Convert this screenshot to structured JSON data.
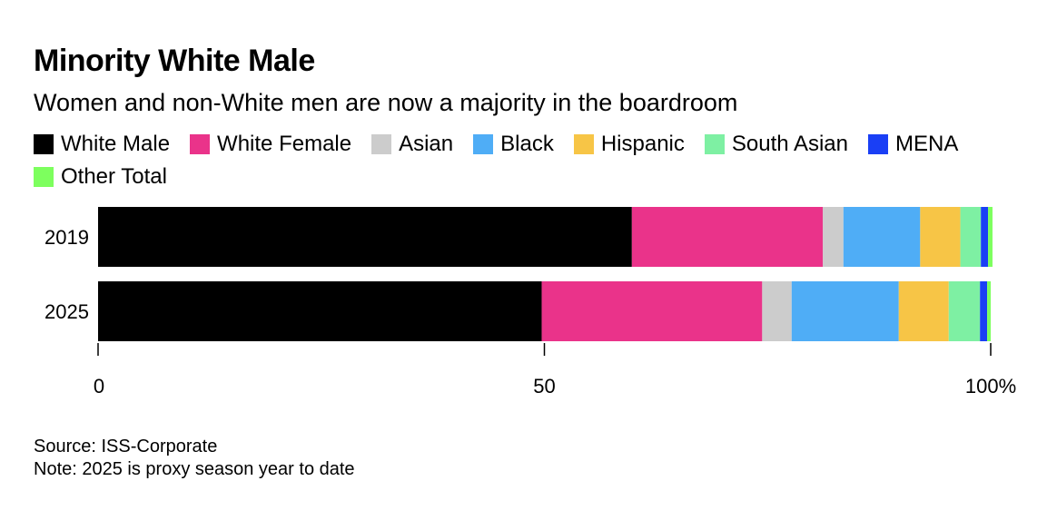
{
  "chart_data": {
    "type": "bar",
    "orientation": "horizontal",
    "stacked": true,
    "title": "Minority White Male",
    "subtitle": "Women and non-White men are now a majority in the boardroom",
    "categories": [
      "2019",
      "2025"
    ],
    "series": [
      {
        "name": "White Male",
        "color": "#000000",
        "values": [
          59.8,
          49.7
        ]
      },
      {
        "name": "White Female",
        "color": "#ea338a",
        "values": [
          21.4,
          24.7
        ]
      },
      {
        "name": "Asian",
        "color": "#cccccc",
        "values": [
          2.3,
          3.3
        ]
      },
      {
        "name": "Black",
        "color": "#4fadf6",
        "values": [
          8.6,
          12.0
        ]
      },
      {
        "name": "Hispanic",
        "color": "#f7c546",
        "values": [
          4.5,
          5.6
        ]
      },
      {
        "name": "South Asian",
        "color": "#7ef0a3",
        "values": [
          2.3,
          3.5
        ]
      },
      {
        "name": "MENA",
        "color": "#1a3ff5",
        "values": [
          0.8,
          0.8
        ]
      },
      {
        "name": "Other Total",
        "color": "#7dff5e",
        "values": [
          0.5,
          0.4
        ]
      }
    ],
    "xlim": [
      0,
      100
    ],
    "xticks": [
      0,
      50,
      100
    ],
    "xtick_labels": [
      "0",
      "50",
      "100%"
    ],
    "grid": false,
    "legend_position": "top"
  },
  "footer": {
    "source": "Source: ISS-Corporate",
    "note": "Note: 2025 is proxy season year to date"
  }
}
